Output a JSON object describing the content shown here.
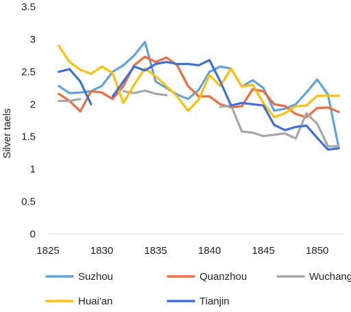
{
  "chart_data": {
    "type": "line",
    "ylabel": "Silver taels",
    "xlabel": "",
    "xlim": [
      1825,
      1852.5
    ],
    "ylim": [
      0,
      3.5
    ],
    "x_ticks": [
      1825,
      1830,
      1835,
      1840,
      1845,
      1850
    ],
    "y_ticks": [
      0,
      0.5,
      1,
      1.5,
      2,
      2.5,
      3,
      3.5
    ],
    "y_tick_labels": [
      "0",
      "0.5",
      "1",
      "1.5",
      "2",
      "2.5",
      "3",
      "3.5"
    ],
    "x_tick_labels": [
      "1825",
      "1830",
      "1835",
      "1840",
      "1845",
      "1850"
    ],
    "grid": false,
    "legend_position": "bottom",
    "series": [
      {
        "name": "Suzhou",
        "color": "#5BA3E6",
        "points": [
          [
            1826,
            2.28
          ],
          [
            1827,
            2.17
          ],
          [
            1828,
            2.18
          ],
          [
            1829,
            2.2
          ],
          [
            1830,
            2.28
          ],
          [
            1831,
            2.5
          ],
          [
            1832,
            2.6
          ],
          [
            1833,
            2.75
          ],
          [
            1834,
            2.96
          ],
          [
            1835,
            2.35
          ],
          [
            1836,
            2.25
          ],
          [
            1837,
            2.15
          ],
          [
            1838,
            2.08
          ],
          [
            1839,
            2.22
          ],
          [
            1840,
            2.5
          ],
          [
            1841,
            2.58
          ],
          [
            1842,
            2.55
          ],
          [
            1843,
            2.27
          ],
          [
            1844,
            2.37
          ],
          [
            1845,
            2.25
          ],
          [
            1846,
            1.9
          ],
          [
            1847,
            1.93
          ],
          [
            1848,
            2.0
          ],
          [
            1849,
            2.18
          ],
          [
            1850,
            2.38
          ],
          [
            1851,
            2.15
          ],
          [
            1852,
            1.33
          ]
        ]
      },
      {
        "name": "Quanzhou",
        "color": "#F26B3A",
        "points": [
          [
            1826,
            2.16
          ],
          [
            1827,
            2.05
          ],
          [
            1828,
            1.89
          ],
          [
            1829,
            2.2
          ],
          [
            1830,
            2.18
          ],
          [
            1831,
            2.08
          ],
          [
            1832,
            2.28
          ],
          [
            1833,
            2.6
          ],
          [
            1834,
            2.73
          ],
          [
            1835,
            2.65
          ],
          [
            1836,
            2.72
          ],
          [
            1837,
            2.6
          ],
          [
            1838,
            2.28
          ],
          [
            1839,
            2.12
          ],
          [
            1840,
            2.12
          ],
          [
            1841,
            2.0
          ],
          [
            1842,
            1.95
          ],
          [
            1843,
            1.97
          ],
          [
            1844,
            2.23
          ],
          [
            1845,
            2.2
          ],
          [
            1846,
            2.0
          ],
          [
            1847,
            1.97
          ],
          [
            1848,
            1.85
          ],
          [
            1849,
            1.8
          ],
          [
            1850,
            1.94
          ],
          [
            1851,
            1.95
          ],
          [
            1852,
            1.88
          ]
        ]
      },
      {
        "name": "Wuchang",
        "color": "#A6A6A6",
        "segments": [
          [
            [
              1826,
              2.05
            ],
            [
              1827,
              2.05
            ],
            [
              1828,
              2.08
            ]
          ],
          [
            [
              1832,
              2.2
            ],
            [
              1833,
              2.17
            ],
            [
              1834,
              2.21
            ],
            [
              1835,
              2.16
            ],
            [
              1836,
              2.14
            ]
          ],
          [
            [
              1841,
              1.96
            ],
            [
              1842,
              1.98
            ],
            [
              1843,
              1.58
            ],
            [
              1844,
              1.56
            ],
            [
              1845,
              1.51
            ],
            [
              1846,
              1.53
            ],
            [
              1847,
              1.55
            ],
            [
              1848,
              1.47
            ],
            [
              1849,
              1.86
            ],
            [
              1850,
              1.7
            ],
            [
              1851,
              1.35
            ],
            [
              1852,
              1.35
            ]
          ]
        ]
      },
      {
        "name": "Huai'an",
        "color": "#FFC000",
        "points": [
          [
            1826,
            2.9
          ],
          [
            1827,
            2.65
          ],
          [
            1828,
            2.53
          ],
          [
            1829,
            2.47
          ],
          [
            1830,
            2.58
          ],
          [
            1831,
            2.48
          ],
          [
            1832,
            2.02
          ],
          [
            1833,
            2.3
          ],
          [
            1834,
            2.55
          ],
          [
            1835,
            2.43
          ],
          [
            1836,
            2.28
          ],
          [
            1837,
            2.12
          ],
          [
            1838,
            1.9
          ],
          [
            1839,
            2.07
          ],
          [
            1840,
            2.45
          ],
          [
            1841,
            2.28
          ],
          [
            1842,
            2.55
          ],
          [
            1843,
            2.27
          ],
          [
            1844,
            2.3
          ],
          [
            1845,
            2.02
          ],
          [
            1846,
            1.8
          ],
          [
            1847,
            1.86
          ],
          [
            1848,
            1.97
          ],
          [
            1849,
            1.98
          ],
          [
            1850,
            2.13
          ],
          [
            1851,
            2.13
          ],
          [
            1852,
            2.13
          ]
        ]
      },
      {
        "name": "Tianjin",
        "color": "#3A6FE0",
        "segments": [
          [
            [
              1826,
              2.5
            ],
            [
              1827,
              2.54
            ],
            [
              1828,
              2.35
            ],
            [
              1829,
              2.0
            ]
          ],
          [
            [
              1831,
              2.12
            ],
            [
              1832,
              2.35
            ],
            [
              1833,
              2.58
            ],
            [
              1834,
              2.52
            ],
            [
              1835,
              2.62
            ],
            [
              1836,
              2.65
            ],
            [
              1837,
              2.62
            ],
            [
              1838,
              2.62
            ],
            [
              1839,
              2.6
            ],
            [
              1840,
              2.68
            ],
            [
              1841,
              2.35
            ],
            [
              1842,
              1.98
            ],
            [
              1843,
              2.02
            ],
            [
              1844,
              2.0
            ],
            [
              1845,
              1.98
            ],
            [
              1846,
              1.68
            ],
            [
              1847,
              1.6
            ],
            [
              1848,
              1.65
            ],
            [
              1849,
              1.67
            ],
            [
              1850,
              1.48
            ],
            [
              1851,
              1.3
            ],
            [
              1852,
              1.32
            ]
          ]
        ]
      }
    ]
  }
}
